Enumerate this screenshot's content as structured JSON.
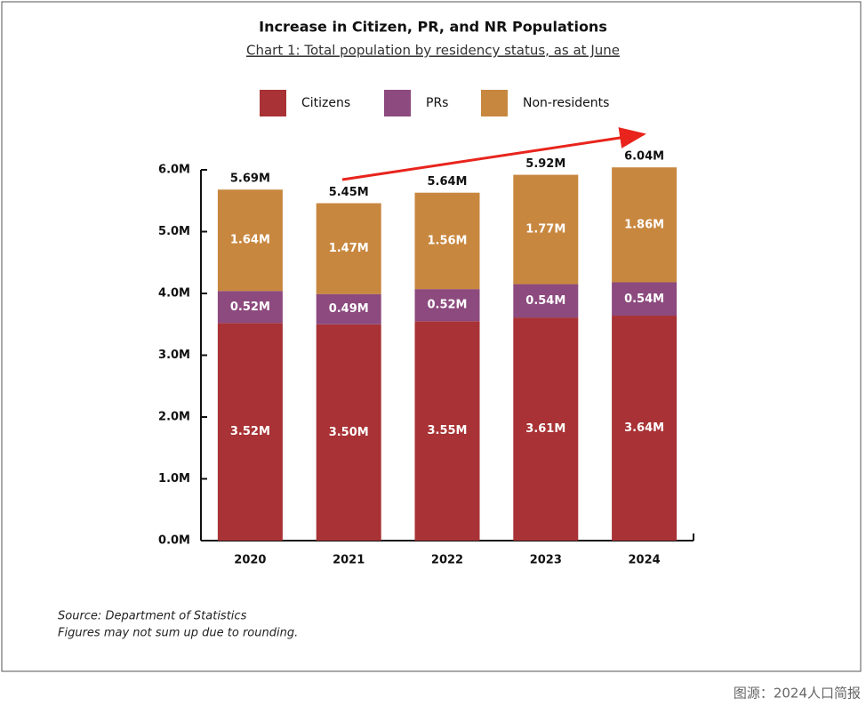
{
  "chart_data": {
    "type": "stacked_bar",
    "title": "Increase in Citizen, PR, and NR Populations",
    "subtitle": "Chart 1: Total population by residency status, as at June",
    "categories": [
      "2020",
      "2021",
      "2022",
      "2023",
      "2024"
    ],
    "series": [
      {
        "name": "Citizens",
        "color": "#a83235",
        "values": [
          3.52,
          3.5,
          3.55,
          3.61,
          3.64
        ],
        "value_labels": [
          "3.52M",
          "3.50M",
          "3.55M",
          "3.61M",
          "3.64M"
        ]
      },
      {
        "name": "PRs",
        "color": "#8c4a7e",
        "values": [
          0.52,
          0.49,
          0.52,
          0.54,
          0.54
        ],
        "value_labels": [
          "0.52M",
          "0.49M",
          "0.52M",
          "0.54M",
          "0.54M"
        ]
      },
      {
        "name": "Non-residents",
        "color": "#c8873f",
        "values": [
          1.64,
          1.47,
          1.56,
          1.77,
          1.86
        ],
        "value_labels": [
          "1.64M",
          "1.47M",
          "1.56M",
          "1.77M",
          "1.86M"
        ]
      }
    ],
    "totals": {
      "values": [
        5.69,
        5.45,
        5.64,
        5.92,
        6.04
      ],
      "value_labels": [
        "5.69M",
        "5.45M",
        "5.64M",
        "5.92M",
        "6.04M"
      ]
    },
    "ylim": [
      0,
      6
    ],
    "yticks": [
      {
        "value": 0,
        "label": "0.0M"
      },
      {
        "value": 1,
        "label": "1.0M"
      },
      {
        "value": 2,
        "label": "2.0M"
      },
      {
        "value": 3,
        "label": "3.0M"
      },
      {
        "value": 4,
        "label": "4.0M"
      },
      {
        "value": 5,
        "label": "5.0M"
      },
      {
        "value": 6,
        "label": "6.0M"
      }
    ],
    "grid": false,
    "legend": "top",
    "notes": [
      "Source: Department of Statistics",
      "Figures may not sum up due to rounding."
    ],
    "caption": "图源：2024人口简报"
  }
}
